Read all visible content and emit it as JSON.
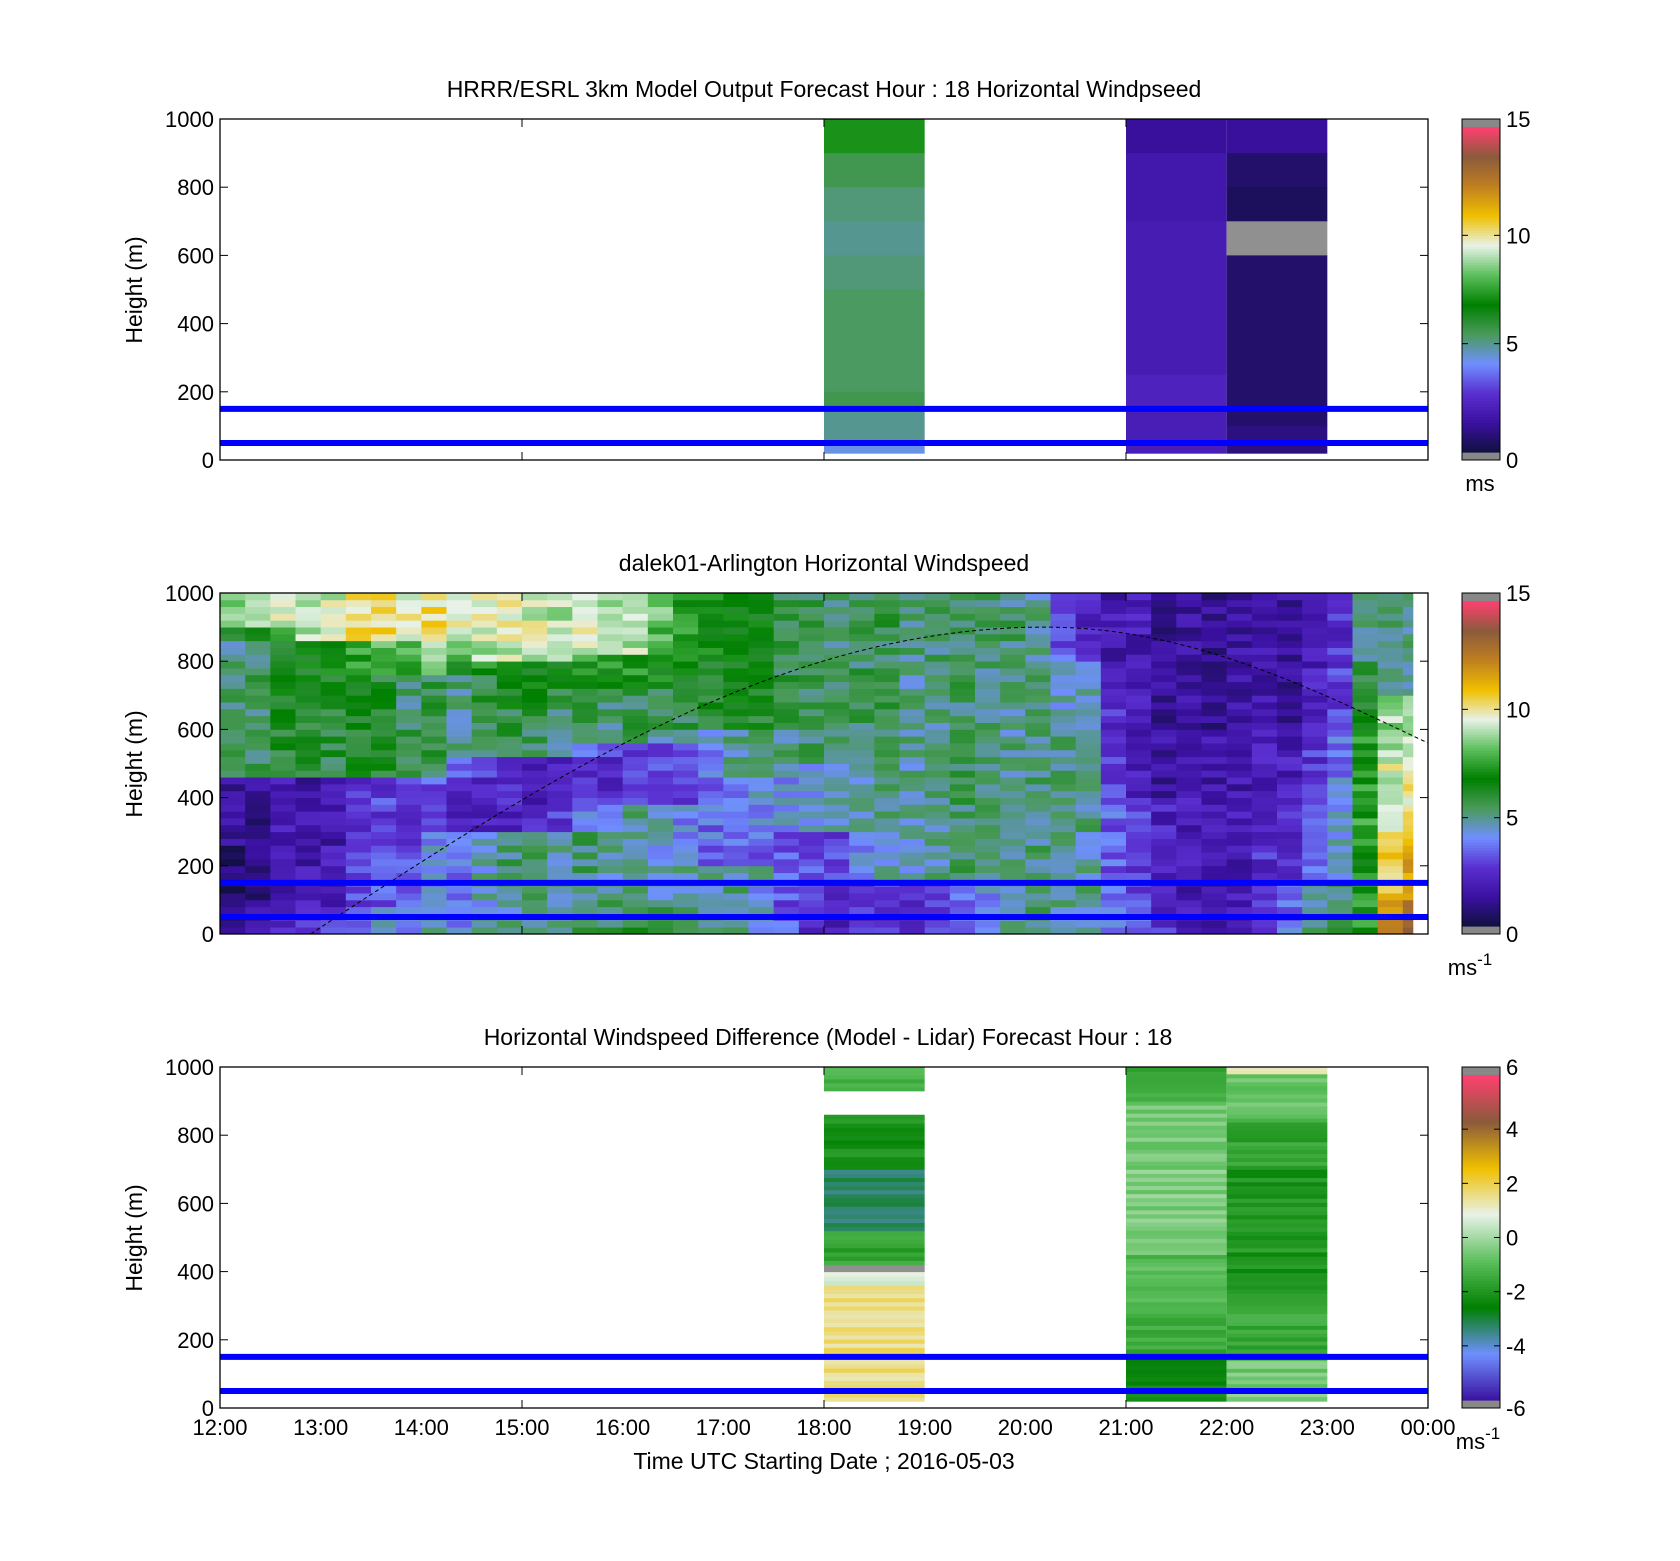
{
  "figure": {
    "xlabel": "Time UTC  Starting Date ; 2016-05-03",
    "x_tick_labels": [
      "12:00",
      "13:00",
      "14:00",
      "15:00",
      "16:00",
      "17:00",
      "18:00",
      "19:00",
      "20:00",
      "21:00",
      "22:00",
      "23:00",
      "00:00"
    ]
  },
  "colors": {
    "reference_lines": "#0000ff",
    "speed_colormap": [
      "#1a1a1a",
      "#101040",
      "#3a10a0",
      "#5a2fd0",
      "#6f8fff",
      "#4a9a5a",
      "#008000",
      "#5cbf5c",
      "#e8f2e8",
      "#f0c000",
      "#c08020",
      "#8b5a3c",
      "#ff4070",
      "#aaaaaa"
    ],
    "diff_colormap": [
      "#1a1a1a",
      "#3a10a0",
      "#6f8fff",
      "#008000",
      "#5cbf5c",
      "#e8f2e8",
      "#f0c000",
      "#8b5a3c",
      "#ff4070"
    ]
  },
  "chart_data": [
    {
      "type": "heatmap",
      "title": "HRRR/ESRL 3km Model Output   Forecast Hour : 18 Horizontal Windpseed",
      "ylabel": "Height (m)",
      "ylim": [
        0,
        1000
      ],
      "y_ticks": [
        "0",
        "200",
        "400",
        "600",
        "800",
        "1000"
      ],
      "xlim_hours": [
        12,
        24
      ],
      "colorbar": {
        "range": [
          0,
          15
        ],
        "ticks": [
          "0",
          "5",
          "10",
          "15"
        ],
        "unit": "ms"
      },
      "reference_lines_m": [
        50,
        150
      ],
      "columns": [
        {
          "t0": 18,
          "t1": 19,
          "z_bottom": 20,
          "z_top": 1000,
          "bands": [
            [
              900,
              1000,
              7.2
            ],
            [
              800,
              900,
              5.6
            ],
            [
              700,
              800,
              5.2
            ],
            [
              600,
              700,
              5.0
            ],
            [
              500,
              600,
              5.2
            ],
            [
              200,
              500,
              5.4
            ],
            [
              150,
              200,
              5.6
            ],
            [
              50,
              150,
              5.0
            ],
            [
              20,
              50,
              4.3
            ]
          ]
        },
        {
          "t0": 21,
          "t1": 22,
          "z_bottom": 20,
          "z_top": 1000,
          "bands": [
            [
              900,
              1000,
              1.3
            ],
            [
              700,
              900,
              1.7
            ],
            [
              250,
              700,
              1.9
            ],
            [
              150,
              250,
              2.2
            ],
            [
              20,
              150,
              2.0
            ]
          ]
        },
        {
          "t0": 22,
          "t1": 23,
          "z_bottom": 20,
          "z_top": 1000,
          "bands": [
            [
              900,
              1000,
              1.3
            ],
            [
              800,
              900,
              0.6
            ],
            [
              700,
              800,
              0.4
            ],
            [
              600,
              700,
              "missing"
            ],
            [
              100,
              600,
              0.6
            ],
            [
              20,
              100,
              0.9
            ]
          ]
        }
      ]
    },
    {
      "type": "heatmap",
      "title": "dalek01-Arlington  Horizontal Windspeed",
      "ylabel": "Height (m)",
      "ylim": [
        0,
        1000
      ],
      "y_ticks": [
        "0",
        "200",
        "400",
        "600",
        "800",
        "1000"
      ],
      "xlim_hours": [
        12,
        24
      ],
      "data_end_hour": 23.85,
      "colorbar": {
        "range": [
          0,
          15
        ],
        "ticks": [
          "0",
          "5",
          "10",
          "15"
        ],
        "unit": "ms",
        "unit_exp": "-1"
      },
      "reference_lines_m": [
        50,
        150
      ],
      "dashed_curve": {
        "peak_hour": 20.2,
        "peak_height_m": 900,
        "start_hour": 12.9,
        "start_height_m": 0,
        "end_hour": 24,
        "end_height_m": 560
      },
      "profiles": [
        {
          "hour": 12.0,
          "layers": [
            [
              0,
              100,
              1.4
            ],
            [
              100,
              250,
              0.6
            ],
            [
              250,
              450,
              1.5
            ],
            [
              450,
              700,
              5.5
            ],
            [
              700,
              900,
              5.2
            ],
            [
              900,
              1000,
              9.0
            ]
          ]
        },
        {
          "hour": 13.0,
          "layers": [
            [
              0,
              80,
              3.0
            ],
            [
              80,
              250,
              2.0
            ],
            [
              250,
              450,
              1.6
            ],
            [
              450,
              650,
              6.2
            ],
            [
              650,
              850,
              6.8
            ],
            [
              850,
              1000,
              9.5
            ]
          ]
        },
        {
          "hour": 14.0,
          "layers": [
            [
              0,
              80,
              4.5
            ],
            [
              80,
              300,
              3.5
            ],
            [
              300,
              450,
              3.2
            ],
            [
              450,
              600,
              5.6
            ],
            [
              600,
              750,
              5.2
            ],
            [
              750,
              850,
              8.0
            ],
            [
              850,
              1000,
              10.0
            ]
          ]
        },
        {
          "hour": 15.0,
          "layers": [
            [
              0,
              100,
              4.6
            ],
            [
              100,
              300,
              5.3
            ],
            [
              300,
              520,
              1.8
            ],
            [
              520,
              650,
              5.6
            ],
            [
              650,
              800,
              6.2
            ],
            [
              800,
              1000,
              9.2
            ]
          ]
        },
        {
          "hour": 16.0,
          "layers": [
            [
              0,
              100,
              5.6
            ],
            [
              100,
              380,
              4.8
            ],
            [
              380,
              560,
              2.5
            ],
            [
              560,
              720,
              5.2
            ],
            [
              720,
              820,
              7.2
            ],
            [
              820,
              1000,
              9.0
            ]
          ]
        },
        {
          "hour": 17.0,
          "layers": [
            [
              0,
              200,
              5.0
            ],
            [
              200,
              450,
              3.5
            ],
            [
              450,
              600,
              4.4
            ],
            [
              600,
              800,
              6.2
            ],
            [
              800,
              1000,
              6.6
            ]
          ]
        },
        {
          "hour": 18.0,
          "layers": [
            [
              0,
              150,
              2.5
            ],
            [
              150,
              300,
              3.2
            ],
            [
              300,
              500,
              4.8
            ],
            [
              500,
              1000,
              5.8
            ]
          ]
        },
        {
          "hour": 19.0,
          "layers": [
            [
              0,
              150,
              2.6
            ],
            [
              150,
              350,
              5.0
            ],
            [
              350,
              1000,
              5.2
            ]
          ]
        },
        {
          "hour": 20.0,
          "layers": [
            [
              0,
              200,
              5.0
            ],
            [
              200,
              700,
              5.1
            ],
            [
              700,
              1000,
              5.4
            ]
          ]
        },
        {
          "hour": 20.6,
          "layers": [
            [
              0,
              300,
              5.0
            ],
            [
              300,
              600,
              5.2
            ],
            [
              600,
              800,
              4.6
            ],
            [
              800,
              1000,
              2.2
            ]
          ]
        },
        {
          "hour": 21.0,
          "layers": [
            [
              0,
              100,
              3.5
            ],
            [
              100,
              400,
              2.8
            ],
            [
              400,
              1000,
              1.7
            ]
          ]
        },
        {
          "hour": 22.0,
          "layers": [
            [
              0,
              150,
              1.5
            ],
            [
              150,
              600,
              1.6
            ],
            [
              600,
              1000,
              1.3
            ]
          ]
        },
        {
          "hour": 23.0,
          "layers": [
            [
              0,
              150,
              5.2
            ],
            [
              150,
              400,
              3.5
            ],
            [
              400,
              600,
              2.5
            ],
            [
              600,
              1000,
              1.8
            ]
          ]
        },
        {
          "hour": 23.35,
          "layers": [
            [
              0,
              300,
              6.8
            ],
            [
              300,
              600,
              7.2
            ],
            [
              600,
              800,
              6.0
            ],
            [
              800,
              1000,
              5.0
            ]
          ]
        },
        {
          "hour": 23.7,
          "layers": [
            [
              0,
              100,
              13.0
            ],
            [
              100,
              300,
              11.5
            ],
            [
              300,
              500,
              10.0
            ],
            [
              500,
              700,
              9.5
            ],
            [
              700,
              1000,
              5.2
            ]
          ]
        }
      ]
    },
    {
      "type": "heatmap",
      "title": "Horizontal Windspeed Difference (Model - Lidar) Forecast Hour : 18",
      "ylabel": "Height (m)",
      "ylim": [
        0,
        1000
      ],
      "y_ticks": [
        "0",
        "200",
        "400",
        "600",
        "800",
        "1000"
      ],
      "xlim_hours": [
        12,
        24
      ],
      "colorbar": {
        "range": [
          -6,
          6
        ],
        "ticks": [
          "-6",
          "-4",
          "-2",
          "0",
          "2",
          "4",
          "6"
        ],
        "unit": "ms",
        "unit_exp": "-1"
      },
      "reference_lines_m": [
        50,
        150
      ],
      "columns": [
        {
          "t0": 18,
          "t1": 19,
          "bands": [
            [
              20,
              360,
              1.6
            ],
            [
              360,
              400,
              0.8
            ],
            [
              400,
              420,
              "missing"
            ],
            [
              420,
              520,
              -1.6
            ],
            [
              520,
              700,
              -3.3
            ],
            [
              700,
              860,
              -2.1
            ],
            [
              930,
              1000,
              -1.2
            ]
          ]
        },
        {
          "t0": 21,
          "t1": 22,
          "bands": [
            [
              20,
              150,
              -2.3
            ],
            [
              150,
              300,
              -1.4
            ],
            [
              300,
              450,
              -1.0
            ],
            [
              450,
              700,
              -0.4
            ],
            [
              700,
              900,
              -0.6
            ],
            [
              900,
              1000,
              -1.4
            ]
          ]
        },
        {
          "t0": 22,
          "t1": 23,
          "bands": [
            [
              20,
              60,
              -0.3
            ],
            [
              60,
              150,
              -0.6
            ],
            [
              150,
              300,
              -1.5
            ],
            [
              300,
              700,
              -2.0
            ],
            [
              700,
              850,
              -1.6
            ],
            [
              850,
              980,
              -0.8
            ],
            [
              980,
              1000,
              1.4
            ]
          ]
        }
      ]
    }
  ]
}
